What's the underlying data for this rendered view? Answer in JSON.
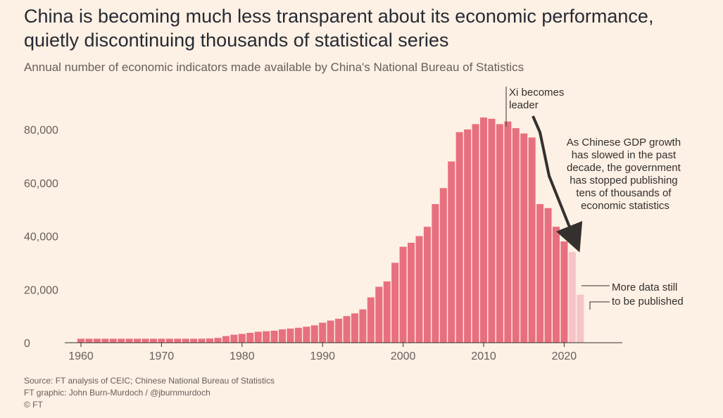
{
  "title_line1": "China is becoming much less transparent about its economic performance,",
  "title_line2": "quietly discontinuing thousands of statistical series",
  "subtitle": "Annual number of economic indicators made available by China's National Bureau of Statistics",
  "footer": {
    "source": "Source: FT analysis of CEIC; Chinese National Bureau of Statistics",
    "graphic": "FT graphic: John Burn-Murdoch / @jburnmurdoch",
    "copyright": "© FT"
  },
  "colors": {
    "background": "#fdf0e4",
    "bar": "#e8707e",
    "bar_pending": "#f6c4c8",
    "text": "#33302e",
    "muted": "#66605c"
  },
  "annotations": {
    "xi_line1": "Xi becomes",
    "xi_line2": "leader",
    "gdp_lines": [
      "As Chinese GDP growth",
      "has slowed in the past",
      "decade, the government",
      "has stopped publishing",
      "tens of thousands of",
      "economic statistics"
    ],
    "pending_line1": "More data still",
    "pending_line2": "to be published"
  },
  "chart_data": {
    "type": "bar",
    "xlabel": "",
    "ylabel": "",
    "ylim": [
      0,
      90000
    ],
    "y_ticks": [
      0,
      20000,
      40000,
      60000,
      80000
    ],
    "y_tick_labels": [
      "0",
      "20,000",
      "40,000",
      "60,000",
      "80,000"
    ],
    "x_ticks": [
      1960,
      1970,
      1980,
      1990,
      2000,
      2010,
      2020
    ],
    "x_tick_labels": [
      "1960",
      "1970",
      "1980",
      "1990",
      "2000",
      "2010",
      "2020"
    ],
    "years": [
      1960,
      1961,
      1962,
      1963,
      1964,
      1965,
      1966,
      1967,
      1968,
      1969,
      1970,
      1971,
      1972,
      1973,
      1974,
      1975,
      1976,
      1977,
      1978,
      1979,
      1980,
      1981,
      1982,
      1983,
      1984,
      1985,
      1986,
      1987,
      1988,
      1989,
      1990,
      1991,
      1992,
      1993,
      1994,
      1995,
      1996,
      1997,
      1998,
      1999,
      2000,
      2001,
      2002,
      2003,
      2004,
      2005,
      2006,
      2007,
      2008,
      2009,
      2010,
      2011,
      2012,
      2013,
      2014,
      2015,
      2016,
      2017,
      2018,
      2019,
      2020
    ],
    "values": [
      1500,
      1500,
      1500,
      1500,
      1500,
      1500,
      1500,
      1500,
      1500,
      1500,
      1500,
      1500,
      1500,
      1500,
      1500,
      1500,
      1600,
      1800,
      2500,
      3000,
      3300,
      3700,
      4100,
      4300,
      4500,
      5000,
      5300,
      5600,
      6000,
      6500,
      7500,
      8300,
      9000,
      10000,
      11000,
      12500,
      17000,
      21000,
      23000,
      30000,
      36000,
      37500,
      40000,
      43500,
      52000,
      58000,
      68000,
      79000,
      80000,
      82000,
      84500,
      84000,
      82000,
      83000,
      80500,
      78500,
      77000,
      52000,
      50500,
      43500,
      38000
    ],
    "partial_years": [
      2021,
      2022
    ],
    "partial_values": [
      34000,
      18000
    ],
    "partial_label": "More data still to be published",
    "grid": false,
    "legend": "none"
  }
}
